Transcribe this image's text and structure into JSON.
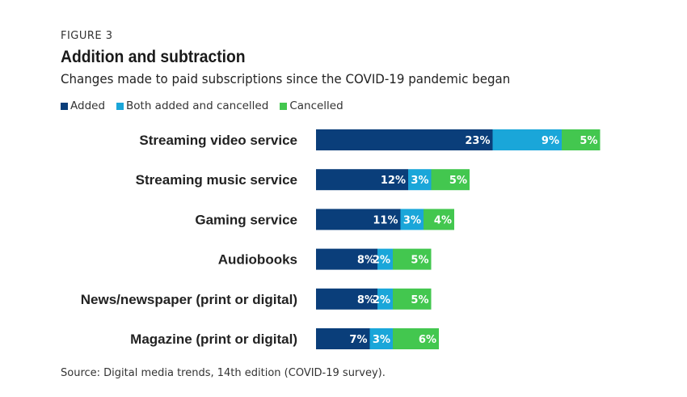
{
  "figure_label": "FIGURE 3",
  "source": "Source: Digital media trends, 14th edition (COVID-19 survey).",
  "colors": {
    "added": "#0a3e7a",
    "both": "#1aa6d9",
    "cancelled": "#43c74f"
  },
  "chart_data": {
    "type": "bar",
    "orientation": "horizontal",
    "stacked": true,
    "title": "Addition and subtraction",
    "subtitle": "Changes made to paid subscriptions since the COVID-19 pandemic began",
    "legend_position": "top-left",
    "grid": false,
    "categories": [
      "Streaming video service",
      "Streaming music service",
      "Gaming service",
      "Audiobooks",
      "News/newspaper (print or digital)",
      "Magazine (print or digital)"
    ],
    "series": [
      {
        "name": "Added",
        "values": [
          23,
          12,
          11,
          8,
          8,
          7
        ]
      },
      {
        "name": "Both added and cancelled",
        "values": [
          9,
          3,
          3,
          2,
          2,
          3
        ]
      },
      {
        "name": "Cancelled",
        "values": [
          5,
          5,
          4,
          5,
          5,
          6
        ]
      }
    ],
    "value_suffix": "%"
  }
}
